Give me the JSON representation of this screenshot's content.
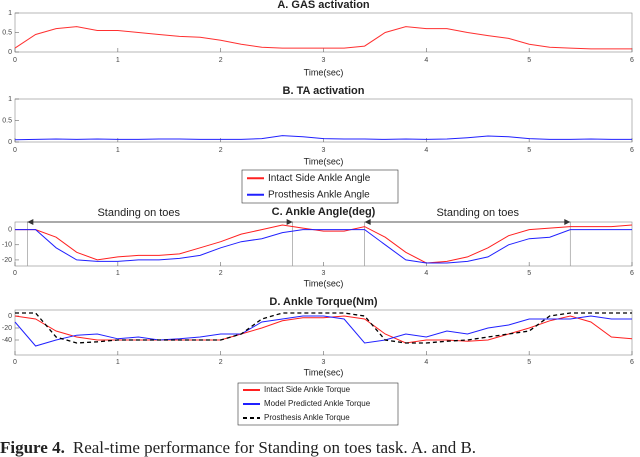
{
  "chart_data": [
    {
      "type": "line",
      "title": "A. GAS activation",
      "xlabel": "Time(sec)",
      "x": [
        0,
        0.2,
        0.4,
        0.6,
        0.8,
        1,
        1.2,
        1.4,
        1.6,
        1.8,
        2,
        2.2,
        2.4,
        2.6,
        2.8,
        3,
        3.2,
        3.4,
        3.6,
        3.8,
        4,
        4.2,
        4.4,
        4.6,
        4.8,
        5,
        5.2,
        5.4,
        5.6,
        5.8,
        6
      ],
      "series": [
        {
          "color": "#ff3030",
          "values": [
            0.1,
            0.45,
            0.6,
            0.65,
            0.55,
            0.55,
            0.5,
            0.45,
            0.4,
            0.38,
            0.3,
            0.2,
            0.12,
            0.1,
            0.1,
            0.1,
            0.1,
            0.15,
            0.5,
            0.65,
            0.6,
            0.6,
            0.5,
            0.42,
            0.35,
            0.2,
            0.12,
            0.1,
            0.08,
            0.08,
            0.08
          ]
        }
      ],
      "xlim": [
        0,
        6
      ],
      "xticks": [
        0,
        1,
        2,
        3,
        4,
        5,
        6
      ],
      "ylim": [
        0,
        1
      ],
      "yticks": [
        0,
        0.5,
        1
      ]
    },
    {
      "type": "line",
      "title": "B. TA activation",
      "xlabel": "Time(sec)",
      "x": [
        0,
        0.2,
        0.4,
        0.6,
        0.8,
        1,
        1.2,
        1.4,
        1.6,
        1.8,
        2,
        2.2,
        2.4,
        2.6,
        2.8,
        3,
        3.2,
        3.4,
        3.6,
        3.8,
        4,
        4.2,
        4.4,
        4.6,
        4.8,
        5,
        5.2,
        5.4,
        5.6,
        5.8,
        6
      ],
      "series": [
        {
          "color": "#2020ff",
          "values": [
            0.05,
            0.06,
            0.07,
            0.06,
            0.07,
            0.06,
            0.06,
            0.07,
            0.07,
            0.06,
            0.06,
            0.06,
            0.08,
            0.15,
            0.12,
            0.08,
            0.07,
            0.07,
            0.06,
            0.07,
            0.06,
            0.07,
            0.1,
            0.14,
            0.12,
            0.08,
            0.06,
            0.06,
            0.07,
            0.06,
            0.06
          ]
        }
      ],
      "xlim": [
        0,
        6
      ],
      "xticks": [
        0,
        1,
        2,
        3,
        4,
        5,
        6
      ],
      "ylim": [
        0,
        1
      ],
      "yticks": [
        0,
        0.5,
        1
      ]
    },
    {
      "type": "line",
      "title": "C. Ankle Angle(deg)",
      "xlabel": "Time(sec)",
      "annotations": [
        "Standing on toes",
        "Standing on toes"
      ],
      "x": [
        0,
        0.2,
        0.4,
        0.6,
        0.8,
        1,
        1.2,
        1.4,
        1.6,
        1.8,
        2,
        2.2,
        2.4,
        2.6,
        2.8,
        3,
        3.2,
        3.4,
        3.6,
        3.8,
        4,
        4.2,
        4.4,
        4.6,
        4.8,
        5,
        5.2,
        5.4,
        5.6,
        5.8,
        6
      ],
      "series": [
        {
          "name": "Intact Side Ankle Angle",
          "color": "#ff2020",
          "values": [
            0,
            0,
            -5,
            -15,
            -20,
            -18,
            -17,
            -17,
            -16,
            -12,
            -8,
            -3,
            0,
            3,
            1,
            -1,
            -1,
            2,
            -5,
            -15,
            -22,
            -21,
            -18,
            -12,
            -4,
            0,
            1,
            2,
            2,
            2,
            3
          ]
        },
        {
          "name": "Prosthesis Ankle Angle",
          "color": "#2020ff",
          "values": [
            0,
            0,
            -12,
            -20,
            -21,
            -21,
            -20,
            -20,
            -19,
            -17,
            -12,
            -8,
            -6,
            -2,
            0,
            0,
            0,
            0,
            -10,
            -20,
            -22,
            -22,
            -21,
            -18,
            -10,
            -6,
            -5,
            0,
            0,
            0,
            0
          ]
        }
      ],
      "xlim": [
        0,
        6
      ],
      "xticks": [
        0,
        1,
        2,
        3,
        4,
        5,
        6
      ],
      "ylim": [
        -24,
        5
      ],
      "yticks": [
        -20,
        -10,
        0
      ]
    },
    {
      "type": "line",
      "title": "D. Ankle Torque(Nm)",
      "xlabel": "Time(sec)",
      "x": [
        0,
        0.2,
        0.4,
        0.6,
        0.8,
        1,
        1.2,
        1.4,
        1.6,
        1.8,
        2,
        2.2,
        2.4,
        2.6,
        2.8,
        3,
        3.2,
        3.4,
        3.6,
        3.8,
        4,
        4.2,
        4.4,
        4.6,
        4.8,
        5,
        5.2,
        5.4,
        5.6,
        5.8,
        6
      ],
      "series": [
        {
          "name": "Intact Side Ankle Torque",
          "color": "#ff2020",
          "values": [
            0,
            -5,
            -25,
            -35,
            -40,
            -40,
            -40,
            -40,
            -40,
            -40,
            -40,
            -30,
            -20,
            -8,
            -3,
            -3,
            0,
            -5,
            -30,
            -45,
            -40,
            -40,
            -42,
            -40,
            -30,
            -20,
            -8,
            0,
            -10,
            -35,
            -38
          ]
        },
        {
          "name": "Model Predicted Ankle Torque",
          "color": "#2020ff",
          "values": [
            -10,
            -50,
            -40,
            -32,
            -30,
            -38,
            -35,
            -40,
            -38,
            -35,
            -30,
            -30,
            -10,
            -5,
            0,
            0,
            -5,
            -45,
            -40,
            -30,
            -35,
            -25,
            -30,
            -20,
            -15,
            -5,
            -5,
            -5,
            0,
            -5,
            -5
          ]
        },
        {
          "name": "Prosthesis Ankle Torque",
          "color": "#000000",
          "dash": true,
          "values": [
            5,
            5,
            -35,
            -45,
            -43,
            -40,
            -40,
            -40,
            -40,
            -40,
            -40,
            -30,
            -5,
            5,
            5,
            5,
            5,
            0,
            -40,
            -45,
            -45,
            -42,
            -40,
            -35,
            -30,
            -25,
            0,
            5,
            5,
            5,
            5
          ]
        }
      ],
      "xlim": [
        0,
        6
      ],
      "xticks": [
        0,
        1,
        2,
        3,
        4,
        5,
        6
      ],
      "ylim": [
        -65,
        10
      ],
      "yticks": [
        -40,
        -20,
        0
      ]
    }
  ],
  "caption": {
    "label": "Figure 4.",
    "text": "Real-time performance for Standing on toes task. A. and B."
  }
}
